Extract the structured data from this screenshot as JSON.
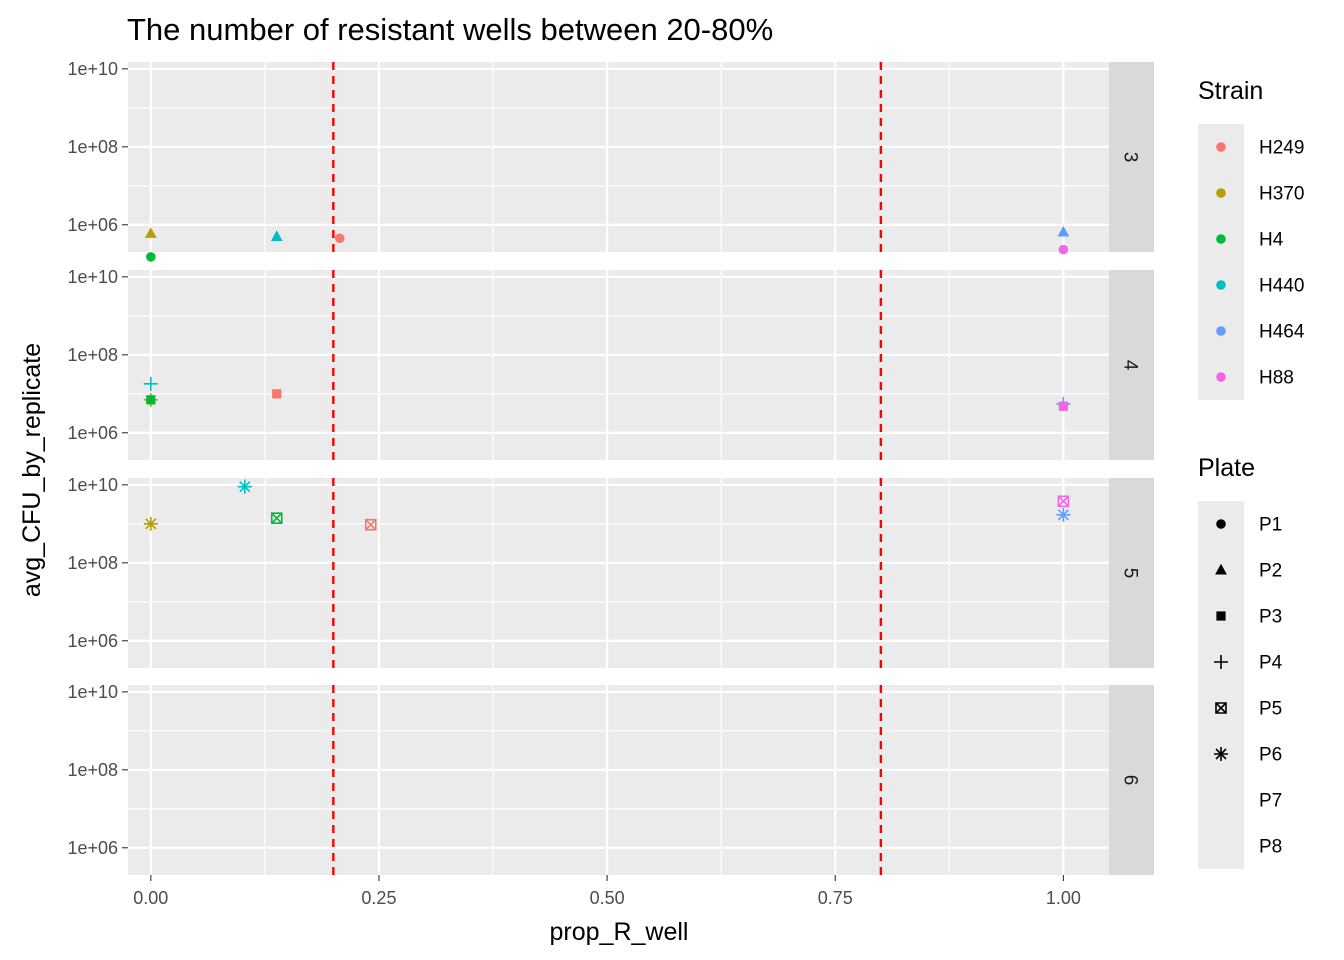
{
  "chart_data": {
    "type": "scatter",
    "title": "The number of resistant wells between 20-80%",
    "xlabel": "prop_R_well",
    "ylabel": "avg_CFU_by_replicate",
    "y_scale": "log10",
    "x_ticks": [
      "0.00",
      "0.25",
      "0.50",
      "0.75",
      "1.00"
    ],
    "x_tick_values": [
      0,
      0.25,
      0.5,
      0.75,
      1
    ],
    "xlim": [
      -0.025,
      1.05
    ],
    "y_ticks": [
      "1e+06",
      "1e+08",
      "1e+10"
    ],
    "y_tick_values": [
      1000000,
      100000000,
      10000000000
    ],
    "ylim": [
      200000,
      15000000000
    ],
    "reference_lines": [
      {
        "x": 0.2,
        "color": "#ff0000",
        "style": "dashed"
      },
      {
        "x": 0.8,
        "color": "#ff0000",
        "style": "dashed"
      }
    ],
    "grid": true,
    "facet_labels": [
      "3",
      "4",
      "5",
      "6"
    ],
    "strain_legend": {
      "title": "Strain",
      "items": [
        {
          "label": "H249",
          "color": "#F8766D"
        },
        {
          "label": "H370",
          "color": "#B79F00"
        },
        {
          "label": "H4",
          "color": "#00BA38"
        },
        {
          "label": "H440",
          "color": "#00BFC4"
        },
        {
          "label": "H464",
          "color": "#619CFF"
        },
        {
          "label": "H88",
          "color": "#F564E3"
        }
      ]
    },
    "plate_legend": {
      "title": "Plate",
      "items": [
        {
          "label": "P1",
          "shape": "circle"
        },
        {
          "label": "P2",
          "shape": "triangle"
        },
        {
          "label": "P3",
          "shape": "square"
        },
        {
          "label": "P4",
          "shape": "plus"
        },
        {
          "label": "P5",
          "shape": "square-x"
        },
        {
          "label": "P6",
          "shape": "asterisk"
        },
        {
          "label": "P7",
          "shape": "none"
        },
        {
          "label": "P8",
          "shape": "none"
        }
      ]
    },
    "points": [
      {
        "facet": "3",
        "x": 0.0,
        "y": 600000,
        "strain": "H370",
        "plate": "P2"
      },
      {
        "facet": "3",
        "x": 0.0,
        "y": 150000,
        "strain": "H4",
        "plate": "P1"
      },
      {
        "facet": "3",
        "x": 0.138,
        "y": 500000,
        "strain": "H440",
        "plate": "P2"
      },
      {
        "facet": "3",
        "x": 0.207,
        "y": 450000,
        "strain": "H249",
        "plate": "P1"
      },
      {
        "facet": "3",
        "x": 1.0,
        "y": 650000,
        "strain": "H464",
        "plate": "P2"
      },
      {
        "facet": "3",
        "x": 1.0,
        "y": 230000,
        "strain": "H88",
        "plate": "P1"
      },
      {
        "facet": "4",
        "x": 0.0,
        "y": 18000000,
        "strain": "H440",
        "plate": "P4"
      },
      {
        "facet": "4",
        "x": 0.0,
        "y": 7000000,
        "strain": "H370",
        "plate": "P4"
      },
      {
        "facet": "4",
        "x": 0.0,
        "y": 7000000,
        "strain": "H4",
        "plate": "P3"
      },
      {
        "facet": "4",
        "x": 0.138,
        "y": 10000000,
        "strain": "H249",
        "plate": "P3"
      },
      {
        "facet": "4",
        "x": 1.0,
        "y": 5500000,
        "strain": "H464",
        "plate": "P4"
      },
      {
        "facet": "4",
        "x": 1.0,
        "y": 4800000,
        "strain": "H88",
        "plate": "P3"
      },
      {
        "facet": "5",
        "x": 0.0,
        "y": 1000000000,
        "strain": "H370",
        "plate": "P6"
      },
      {
        "facet": "5",
        "x": 0.103,
        "y": 9000000000,
        "strain": "H440",
        "plate": "P6"
      },
      {
        "facet": "5",
        "x": 0.138,
        "y": 1400000000,
        "strain": "H4",
        "plate": "P5"
      },
      {
        "facet": "5",
        "x": 0.241,
        "y": 950000000,
        "strain": "H249",
        "plate": "P5"
      },
      {
        "facet": "5",
        "x": 1.0,
        "y": 3800000000,
        "strain": "H88",
        "plate": "P5"
      },
      {
        "facet": "5",
        "x": 1.0,
        "y": 1700000000,
        "strain": "H464",
        "plate": "P6"
      }
    ]
  }
}
